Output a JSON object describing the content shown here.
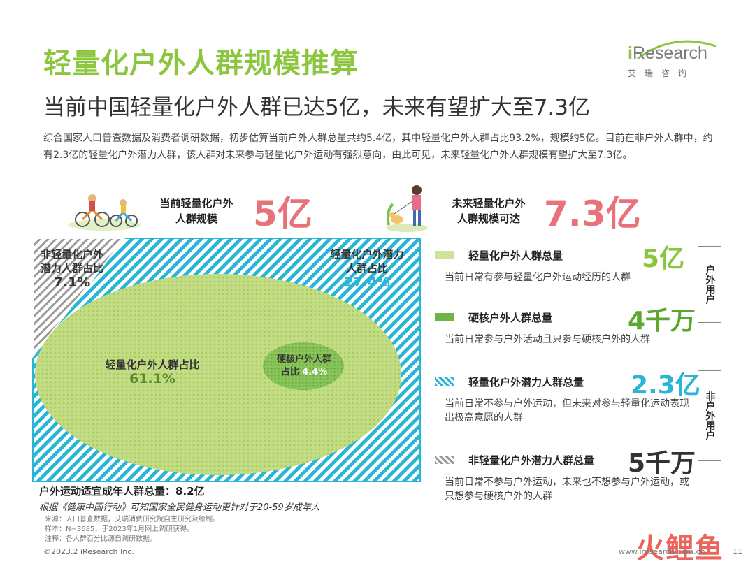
{
  "header": {
    "title": "轻量化户外人群规模推算",
    "subtitle": "当前中国轻量化户外人群已达5亿，未来有望扩大至7.3亿",
    "logo_main": "Research",
    "logo_i": "i",
    "logo_sub": "艾瑞咨询"
  },
  "description": "综合国家人口普查数据及消费者调研数据，初步估算当前户外人群总量共约5.4亿，其中轻量化户外人群占比93.2%，规模约5亿。目前在非户外人群中，约有2.3亿的轻量化户外潜力人群，该人群对未来参与轻量化户外运动有强烈意向，由此可见，未来轻量化户外人群规模有望扩大至7.3亿。",
  "kpis": {
    "current_label_1": "当前轻量化户外",
    "current_label_2": "人群规模",
    "current_value": "5亿",
    "future_label_1": "未来轻量化户外",
    "future_label_2": "人群规模可达",
    "future_value": "7.3亿"
  },
  "chart_data": {
    "type": "area",
    "title": "",
    "total_label": "户外运动适宜成年人群总量：8.2亿",
    "note": "根据《健康中国行动》可知国家全民健身运动更针对于20-59岁成年人",
    "segments": [
      {
        "name_1": "非轻量化户外",
        "name_2": "潜力人群占比",
        "pct": "7.1%",
        "value": 7.1,
        "color": "#9a9a9a"
      },
      {
        "name_1": "轻量化户外潜力",
        "name_2": "人群占比",
        "pct": "27.4%",
        "value": 27.4,
        "color": "#2ab5d6"
      },
      {
        "name_1": "轻量化户外人群占比",
        "name_2": "",
        "pct": "61.1%",
        "value": 61.1,
        "color": "#b5d46a"
      },
      {
        "name_1": "硬核户外人群",
        "name_2": "占比",
        "pct": "4.4%",
        "value": 4.4,
        "color": "#7fbf4d"
      }
    ]
  },
  "legend": [
    {
      "name": "轻量化户外人群总量",
      "value": "5亿",
      "desc": "当前日常有参与轻量化户外运动经历的人群",
      "color": "#8cc63f"
    },
    {
      "name": "硬核户外人群总量",
      "value": "4千万",
      "desc": "当前日常参与户外活动且只参与硬核户外的人群",
      "color": "#5aa832"
    },
    {
      "name": "轻量化户外潜力人群总量",
      "value": "2.3亿",
      "desc": "当前日常不参与户外运动，但未来对参与轻量化运动表现出极高意愿的人群",
      "color": "#2ab5d6"
    },
    {
      "name": "非轻量化户外潜力人群总量",
      "value": "5千万",
      "desc": "当前日常不参与户外运动，未来也不想参与户外运动，或只想参与硬核户外的人群",
      "color": "#333333"
    }
  ],
  "side_tags": {
    "outdoor": "户外用户",
    "non_outdoor": "非户外用户"
  },
  "footer": {
    "source_1": "来源：人口普查数据，艾瑞消费研究院自主研究及绘制。",
    "source_2": "样本：N=3685，于2023年1月网上调研获得。",
    "source_3": "注释：各人群百分比源自调研数据。",
    "copyright": "©2023.2 iResearch Inc.",
    "site": "www.iresearch.com.cn",
    "page": "11",
    "watermark": "火鲤鱼"
  }
}
